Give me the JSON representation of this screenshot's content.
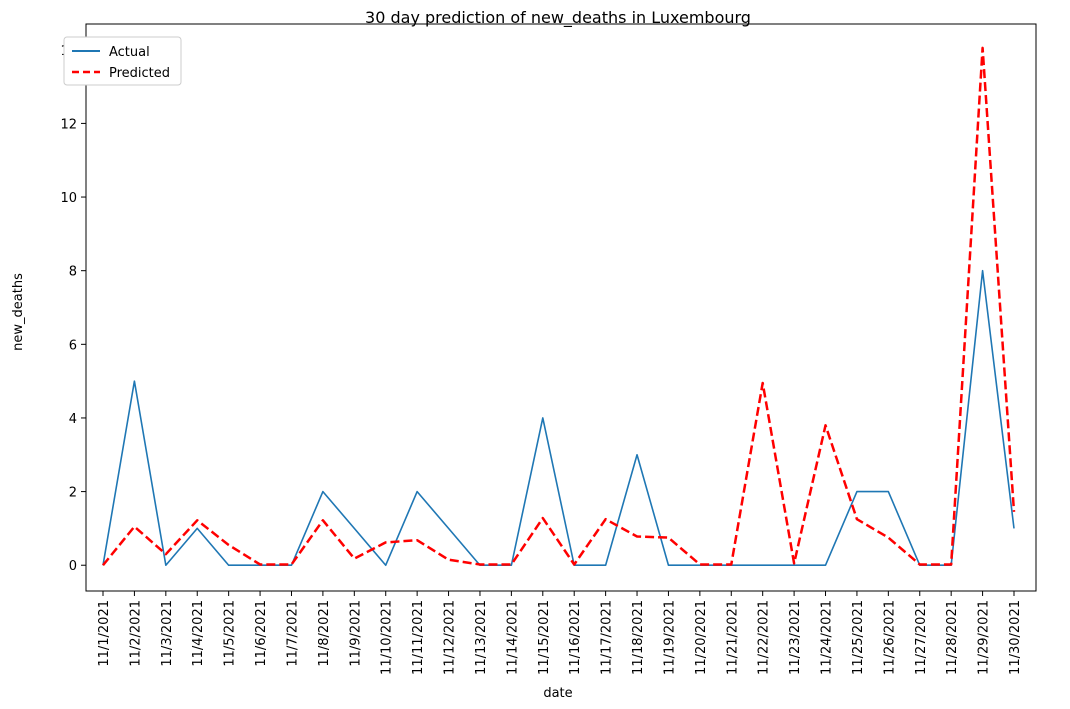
{
  "chart_data": {
    "type": "line",
    "title": "30 day prediction of new_deaths in Luxembourg",
    "xlabel": "date",
    "ylabel": "new_deaths",
    "categories": [
      "11/1/2021",
      "11/2/2021",
      "11/3/2021",
      "11/4/2021",
      "11/5/2021",
      "11/6/2021",
      "11/7/2021",
      "11/8/2021",
      "11/9/2021",
      "11/10/2021",
      "11/11/2021",
      "11/12/2021",
      "11/13/2021",
      "11/14/2021",
      "11/15/2021",
      "11/16/2021",
      "11/17/2021",
      "11/18/2021",
      "11/19/2021",
      "11/20/2021",
      "11/21/2021",
      "11/22/2021",
      "11/23/2021",
      "11/24/2021",
      "11/25/2021",
      "11/26/2021",
      "11/27/2021",
      "11/28/2021",
      "11/29/2021",
      "11/30/2021"
    ],
    "y_ticks": [
      0,
      2,
      4,
      6,
      8,
      10,
      12,
      14
    ],
    "ylim": [
      -0.7,
      14.7
    ],
    "grid": false,
    "legend_position": "top-left",
    "series": [
      {
        "name": "Actual",
        "color": "#1f77b4",
        "style": "solid",
        "values": [
          0,
          5,
          0,
          1,
          0,
          0,
          0,
          2,
          1,
          0,
          2,
          1,
          0,
          0,
          4,
          0,
          0,
          3,
          0,
          0,
          0,
          0,
          0,
          0,
          2,
          2,
          0,
          0,
          8,
          1
        ]
      },
      {
        "name": "Predicted",
        "color": "#ff0000",
        "style": "dashed",
        "values": [
          0,
          1.05,
          0.3,
          1.22,
          0.55,
          0.02,
          0.02,
          1.22,
          0.18,
          0.62,
          0.68,
          0.15,
          0.02,
          0.02,
          1.28,
          0.02,
          1.25,
          0.78,
          0.75,
          0.02,
          0.02,
          4.95,
          0.05,
          3.8,
          1.25,
          0.75,
          0.02,
          0.02,
          14.05,
          1.45
        ]
      }
    ]
  }
}
